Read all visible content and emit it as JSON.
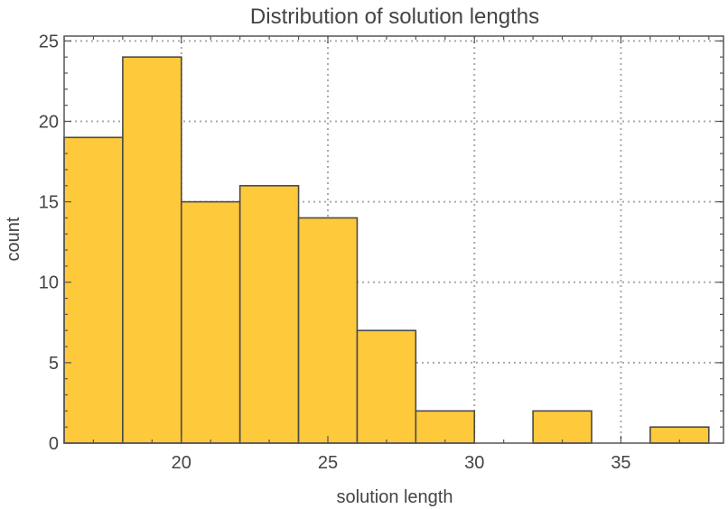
{
  "chart_data": {
    "type": "bar",
    "title": "Distribution of solution lengths",
    "xlabel": "solution length",
    "ylabel": "count",
    "xlim": [
      16,
      38.5
    ],
    "ylim": [
      0,
      25.3
    ],
    "x_ticks": [
      20,
      25,
      30,
      35
    ],
    "y_ticks": [
      0,
      5,
      10,
      15,
      20,
      25
    ],
    "grid": true,
    "bar_color": "#FFC93C",
    "bins": [
      {
        "start": 16,
        "end": 18,
        "value": 19
      },
      {
        "start": 18,
        "end": 20,
        "value": 24
      },
      {
        "start": 20,
        "end": 22,
        "value": 15
      },
      {
        "start": 22,
        "end": 24,
        "value": 16
      },
      {
        "start": 24,
        "end": 26,
        "value": 14
      },
      {
        "start": 26,
        "end": 28,
        "value": 7
      },
      {
        "start": 28,
        "end": 30,
        "value": 2
      },
      {
        "start": 30,
        "end": 32,
        "value": 0
      },
      {
        "start": 32,
        "end": 34,
        "value": 2
      },
      {
        "start": 34,
        "end": 36,
        "value": 0
      },
      {
        "start": 36,
        "end": 38,
        "value": 1
      }
    ]
  }
}
